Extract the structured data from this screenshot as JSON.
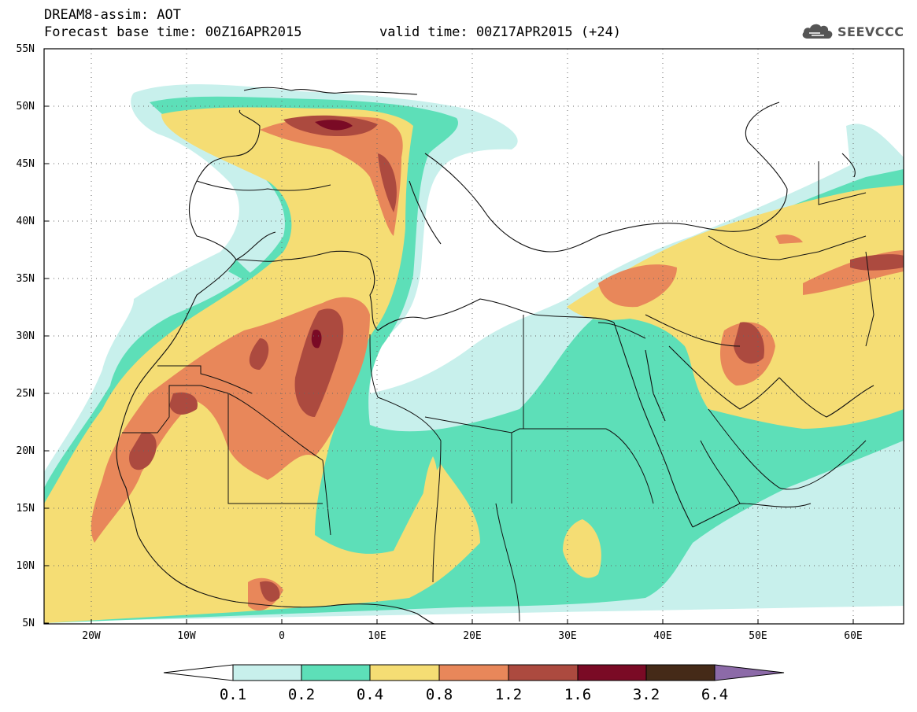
{
  "title": {
    "line1": "DREAM8-assim: AOT",
    "base": "Forecast base time: 00Z16APR2015",
    "valid": "valid time: 00Z17APR2015 (+24)"
  },
  "logo": {
    "icon": "cloud-icon",
    "text": "SEEVCCC"
  },
  "axes": {
    "lat_labels": [
      "55N",
      "50N",
      "45N",
      "40N",
      "35N",
      "30N",
      "25N",
      "20N",
      "15N",
      "10N",
      "5N"
    ],
    "lon_labels": [
      "20W",
      "10W",
      "0",
      "10E",
      "20E",
      "30E",
      "40E",
      "50E",
      "60E"
    ],
    "lat_range": [
      5,
      55
    ],
    "lon_range": [
      -25,
      65
    ]
  },
  "colorbar": {
    "levels": [
      "0.1",
      "0.2",
      "0.4",
      "0.8",
      "1.2",
      "1.6",
      "3.2",
      "6.4"
    ],
    "colors": [
      "#ffffff",
      "#c8f0ec",
      "#5ddfb8",
      "#f5dd74",
      "#e8875a",
      "#ac4a3f",
      "#7a0a25",
      "#452a18",
      "#8c6aa8"
    ]
  }
}
